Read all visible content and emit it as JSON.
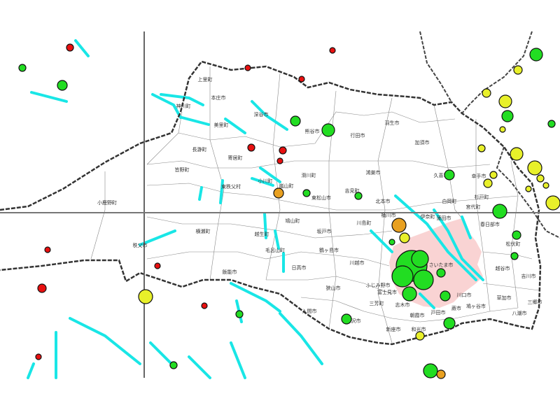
{
  "map": {
    "highlight_color": "#f9d3d3",
    "fault_color": "#19e6e6",
    "boundary_color": "#333333",
    "marker_colors": {
      "green": "#22dd22",
      "yellow": "#e8f02a",
      "red": "#e81010",
      "orange": "#e8a020"
    },
    "municipalities": [
      "上里町",
      "本庄市",
      "神川町",
      "深谷市",
      "美里町",
      "熊谷市",
      "行田市",
      "羽生市",
      "加須市",
      "長瀞町",
      "寄居町",
      "皆野町",
      "滑川町",
      "小川町",
      "嵐山町",
      "東秩父村",
      "東松山市",
      "吉見町",
      "鴻巣市",
      "久喜市",
      "幸手市",
      "小鹿野町",
      "北本市",
      "白岡町",
      "杉戸町",
      "宮代町",
      "桶川市",
      "伊奈町",
      "蓮田市",
      "春日部市",
      "川島町",
      "鳩山町",
      "坂戸市",
      "横瀬町",
      "越生町",
      "秩父市",
      "毛呂山町",
      "鶴ヶ島市",
      "松伏町",
      "川越市",
      "日高市",
      "飯能市",
      "さいたま市",
      "越谷市",
      "吉川市",
      "狭山市",
      "ふじみ野市",
      "富士見市",
      "三芳町",
      "草加市",
      "三郷市",
      "入間市",
      "川口市",
      "蕨市",
      "鳩ヶ谷市",
      "戸田市",
      "朝霞市",
      "所沢市",
      "八潮市",
      "志木市",
      "新座市",
      "和光市"
    ]
  }
}
